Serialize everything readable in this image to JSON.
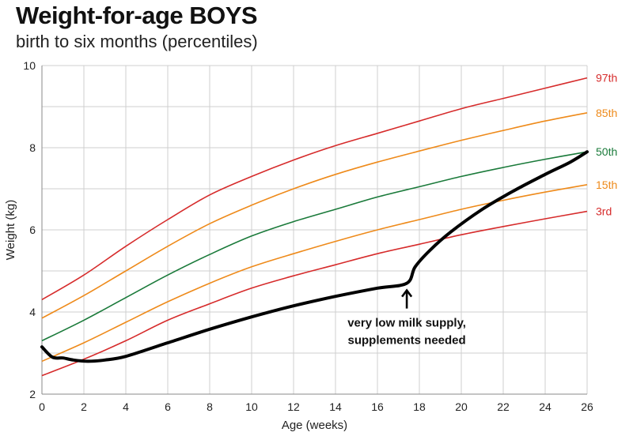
{
  "title": "Weight-for-age BOYS",
  "subtitle": "birth to six months (percentiles)",
  "chart_data": {
    "type": "line",
    "title": "Weight-for-age BOYS",
    "subtitle": "birth to six months (percentiles)",
    "xlabel": "Age (weeks)",
    "ylabel": "Weight (kg)",
    "xlim": [
      0,
      26
    ],
    "ylim": [
      2,
      10
    ],
    "xticks": [
      0,
      2,
      4,
      6,
      8,
      10,
      12,
      14,
      16,
      18,
      20,
      22,
      24,
      26
    ],
    "yticks": [
      2,
      4,
      6,
      8,
      10
    ],
    "grid": true,
    "series": [
      {
        "name": "97th",
        "color": "#d62b2b",
        "x": [
          0,
          2,
          4,
          6,
          8,
          10,
          12,
          14,
          16,
          18,
          20,
          22,
          24,
          26
        ],
        "values": [
          4.3,
          4.9,
          5.6,
          6.25,
          6.85,
          7.3,
          7.7,
          8.05,
          8.35,
          8.65,
          8.95,
          9.2,
          9.45,
          9.7
        ]
      },
      {
        "name": "85th",
        "color": "#ee8a1a",
        "x": [
          0,
          2,
          4,
          6,
          8,
          10,
          12,
          14,
          16,
          18,
          20,
          22,
          24,
          26
        ],
        "values": [
          3.85,
          4.4,
          5.0,
          5.6,
          6.15,
          6.6,
          7.0,
          7.35,
          7.65,
          7.92,
          8.18,
          8.42,
          8.65,
          8.85
        ]
      },
      {
        "name": "50th",
        "color": "#1a7a3a",
        "x": [
          0,
          2,
          4,
          6,
          8,
          10,
          12,
          14,
          16,
          18,
          20,
          22,
          24,
          26
        ],
        "values": [
          3.3,
          3.8,
          4.35,
          4.9,
          5.4,
          5.85,
          6.2,
          6.5,
          6.8,
          7.05,
          7.3,
          7.52,
          7.72,
          7.9
        ]
      },
      {
        "name": "15th",
        "color": "#ee8a1a",
        "x": [
          0,
          2,
          4,
          6,
          8,
          10,
          12,
          14,
          16,
          18,
          20,
          22,
          24,
          26
        ],
        "values": [
          2.8,
          3.25,
          3.75,
          4.25,
          4.7,
          5.1,
          5.42,
          5.72,
          6.0,
          6.25,
          6.5,
          6.72,
          6.92,
          7.1
        ]
      },
      {
        "name": "3rd",
        "color": "#d62b2b",
        "x": [
          0,
          2,
          4,
          6,
          8,
          10,
          12,
          14,
          16,
          18,
          20,
          22,
          24,
          26
        ],
        "values": [
          2.45,
          2.85,
          3.3,
          3.8,
          4.2,
          4.58,
          4.88,
          5.15,
          5.42,
          5.65,
          5.88,
          6.08,
          6.27,
          6.45
        ]
      }
    ],
    "baby_curve": {
      "color": "#000000",
      "x": [
        0,
        0.5,
        1,
        1.5,
        2.2,
        3,
        4,
        6,
        8,
        10,
        12,
        14,
        16,
        17.4,
        17.8,
        18.5,
        19.5,
        21,
        22.5,
        24,
        25.2,
        26
      ],
      "values": [
        3.15,
        2.9,
        2.88,
        2.83,
        2.8,
        2.83,
        2.92,
        3.25,
        3.58,
        3.88,
        4.15,
        4.38,
        4.58,
        4.7,
        5.1,
        5.5,
        5.95,
        6.5,
        6.95,
        7.35,
        7.65,
        7.9
      ]
    },
    "annotation": {
      "lines": [
        "very low milk supply,",
        "supplements needed"
      ],
      "x": 17.4,
      "y": 4.7
    }
  }
}
